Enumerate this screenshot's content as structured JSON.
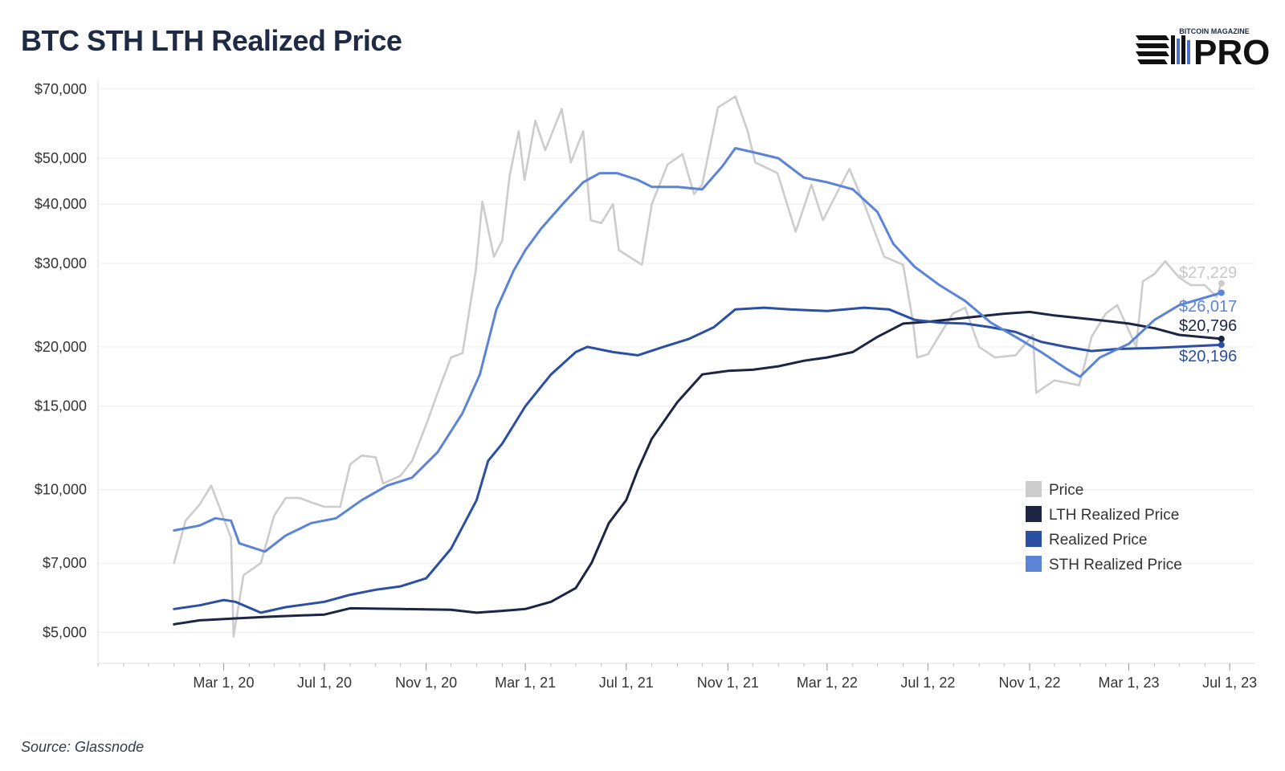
{
  "title": "BTC STH LTH Realized Price",
  "source": "Source: Glassnode",
  "logo": {
    "top_text": "BITCOIN MAGAZINE",
    "main_text": "PRO"
  },
  "chart_data": {
    "type": "line",
    "title": "BTC STH LTH Realized Price",
    "xlabel": "",
    "ylabel": "",
    "y_scale": "log",
    "ylim": [
      4300,
      73000
    ],
    "xlim": [
      "2019-10-01",
      "2023-07-31"
    ],
    "grid": true,
    "legend_position": "bottom-right",
    "y_ticks": [
      {
        "value": 5000,
        "label": "$5,000"
      },
      {
        "value": 7000,
        "label": "$7,000"
      },
      {
        "value": 10000,
        "label": "$10,000"
      },
      {
        "value": 15000,
        "label": "$15,000"
      },
      {
        "value": 20000,
        "label": "$20,000"
      },
      {
        "value": 30000,
        "label": "$30,000"
      },
      {
        "value": 40000,
        "label": "$40,000"
      },
      {
        "value": 50000,
        "label": "$50,000"
      },
      {
        "value": 70000,
        "label": "$70,000"
      }
    ],
    "x_ticks": [
      {
        "value": "2020-03-01",
        "label": "Mar 1, 20"
      },
      {
        "value": "2020-07-01",
        "label": "Jul 1, 20"
      },
      {
        "value": "2020-11-01",
        "label": "Nov 1, 20"
      },
      {
        "value": "2021-03-01",
        "label": "Mar 1, 21"
      },
      {
        "value": "2021-07-01",
        "label": "Jul 1, 21"
      },
      {
        "value": "2021-11-01",
        "label": "Nov 1, 21"
      },
      {
        "value": "2022-03-01",
        "label": "Mar 1, 22"
      },
      {
        "value": "2022-07-01",
        "label": "Jul 1, 22"
      },
      {
        "value": "2022-11-01",
        "label": "Nov 1, 22"
      },
      {
        "value": "2023-03-01",
        "label": "Mar 1, 23"
      },
      {
        "value": "2023-07-01",
        "label": "Jul 1, 23"
      }
    ],
    "series": [
      {
        "name": "Price",
        "color": "#cccccc",
        "end_label": "$27,229",
        "end_label_color": "#c8c8c8",
        "points": [
          [
            "2020-01-01",
            7000
          ],
          [
            "2020-01-15",
            8600
          ],
          [
            "2020-02-01",
            9300
          ],
          [
            "2020-02-15",
            10200
          ],
          [
            "2020-03-01",
            8700
          ],
          [
            "2020-03-10",
            7900
          ],
          [
            "2020-03-13",
            4900
          ],
          [
            "2020-03-25",
            6600
          ],
          [
            "2020-04-15",
            7000
          ],
          [
            "2020-05-01",
            8800
          ],
          [
            "2020-05-15",
            9600
          ],
          [
            "2020-06-01",
            9600
          ],
          [
            "2020-06-15",
            9400
          ],
          [
            "2020-07-01",
            9200
          ],
          [
            "2020-07-20",
            9200
          ],
          [
            "2020-08-01",
            11300
          ],
          [
            "2020-08-15",
            11800
          ],
          [
            "2020-09-01",
            11700
          ],
          [
            "2020-09-10",
            10300
          ],
          [
            "2020-10-01",
            10700
          ],
          [
            "2020-10-15",
            11500
          ],
          [
            "2020-11-01",
            13700
          ],
          [
            "2020-11-15",
            16000
          ],
          [
            "2020-12-01",
            19000
          ],
          [
            "2020-12-15",
            19400
          ],
          [
            "2020-12-31",
            29000
          ],
          [
            "2021-01-08",
            40500
          ],
          [
            "2021-01-22",
            31000
          ],
          [
            "2021-02-01",
            33500
          ],
          [
            "2021-02-10",
            46000
          ],
          [
            "2021-02-21",
            57000
          ],
          [
            "2021-02-28",
            45000
          ],
          [
            "2021-03-13",
            60000
          ],
          [
            "2021-03-25",
            52000
          ],
          [
            "2021-04-14",
            63500
          ],
          [
            "2021-04-25",
            49000
          ],
          [
            "2021-05-10",
            57000
          ],
          [
            "2021-05-19",
            37000
          ],
          [
            "2021-06-01",
            36500
          ],
          [
            "2021-06-15",
            40000
          ],
          [
            "2021-06-22",
            32000
          ],
          [
            "2021-07-20",
            29800
          ],
          [
            "2021-08-01",
            40000
          ],
          [
            "2021-08-20",
            48500
          ],
          [
            "2021-09-07",
            51000
          ],
          [
            "2021-09-21",
            42000
          ],
          [
            "2021-10-01",
            44000
          ],
          [
            "2021-10-20",
            64000
          ],
          [
            "2021-11-10",
            67500
          ],
          [
            "2021-11-25",
            57000
          ],
          [
            "2021-12-04",
            49000
          ],
          [
            "2021-12-31",
            46500
          ],
          [
            "2022-01-22",
            35000
          ],
          [
            "2022-02-10",
            44000
          ],
          [
            "2022-02-24",
            37000
          ],
          [
            "2022-03-28",
            47500
          ],
          [
            "2022-04-15",
            40000
          ],
          [
            "2022-05-09",
            31000
          ],
          [
            "2022-06-01",
            29800
          ],
          [
            "2022-06-13",
            22500
          ],
          [
            "2022-06-18",
            19000
          ],
          [
            "2022-07-01",
            19300
          ],
          [
            "2022-07-31",
            23500
          ],
          [
            "2022-08-15",
            24200
          ],
          [
            "2022-09-01",
            20000
          ],
          [
            "2022-09-20",
            19000
          ],
          [
            "2022-10-15",
            19200
          ],
          [
            "2022-11-05",
            21200
          ],
          [
            "2022-11-09",
            16000
          ],
          [
            "2022-12-01",
            17000
          ],
          [
            "2022-12-31",
            16600
          ],
          [
            "2023-01-15",
            21000
          ],
          [
            "2023-02-01",
            23500
          ],
          [
            "2023-02-15",
            24500
          ],
          [
            "2023-03-10",
            20000
          ],
          [
            "2023-03-18",
            27500
          ],
          [
            "2023-04-01",
            28500
          ],
          [
            "2023-04-14",
            30300
          ],
          [
            "2023-05-01",
            28000
          ],
          [
            "2023-05-15",
            27000
          ],
          [
            "2023-06-01",
            27000
          ],
          [
            "2023-06-15",
            25500
          ],
          [
            "2023-06-21",
            27229
          ]
        ]
      },
      {
        "name": "LTH Realized Price",
        "color": "#1d2545",
        "end_label": "$20,796",
        "end_label_color": "#1d2545",
        "points": [
          [
            "2020-01-01",
            5200
          ],
          [
            "2020-02-01",
            5300
          ],
          [
            "2020-03-15",
            5350
          ],
          [
            "2020-05-01",
            5400
          ],
          [
            "2020-07-01",
            5450
          ],
          [
            "2020-08-01",
            5620
          ],
          [
            "2020-10-01",
            5600
          ],
          [
            "2020-12-01",
            5580
          ],
          [
            "2021-01-01",
            5500
          ],
          [
            "2021-02-01",
            5550
          ],
          [
            "2021-03-01",
            5600
          ],
          [
            "2021-04-01",
            5800
          ],
          [
            "2021-05-01",
            6200
          ],
          [
            "2021-05-20",
            7000
          ],
          [
            "2021-06-10",
            8500
          ],
          [
            "2021-07-01",
            9500
          ],
          [
            "2021-07-15",
            11000
          ],
          [
            "2021-08-01",
            12800
          ],
          [
            "2021-09-01",
            15300
          ],
          [
            "2021-10-01",
            17500
          ],
          [
            "2021-11-01",
            17800
          ],
          [
            "2021-12-01",
            17900
          ],
          [
            "2022-01-01",
            18200
          ],
          [
            "2022-02-01",
            18700
          ],
          [
            "2022-03-01",
            19000
          ],
          [
            "2022-04-01",
            19500
          ],
          [
            "2022-05-01",
            21000
          ],
          [
            "2022-06-01",
            22400
          ],
          [
            "2022-07-01",
            22600
          ],
          [
            "2022-08-01",
            22900
          ],
          [
            "2022-09-01",
            23200
          ],
          [
            "2022-10-01",
            23500
          ],
          [
            "2022-11-01",
            23700
          ],
          [
            "2022-12-01",
            23300
          ],
          [
            "2023-01-01",
            23000
          ],
          [
            "2023-02-01",
            22700
          ],
          [
            "2023-03-01",
            22400
          ],
          [
            "2023-04-01",
            21900
          ],
          [
            "2023-05-01",
            21200
          ],
          [
            "2023-06-21",
            20796
          ]
        ]
      },
      {
        "name": "Realized Price",
        "color": "#2b4fa3",
        "end_label": "$20,196",
        "end_label_color": "#2b4fa3",
        "points": [
          [
            "2020-01-01",
            5600
          ],
          [
            "2020-02-01",
            5700
          ],
          [
            "2020-03-01",
            5850
          ],
          [
            "2020-03-15",
            5800
          ],
          [
            "2020-04-15",
            5500
          ],
          [
            "2020-05-15",
            5650
          ],
          [
            "2020-07-01",
            5800
          ],
          [
            "2020-08-01",
            6000
          ],
          [
            "2020-09-01",
            6150
          ],
          [
            "2020-10-01",
            6250
          ],
          [
            "2020-11-01",
            6500
          ],
          [
            "2020-12-01",
            7500
          ],
          [
            "2021-01-01",
            9500
          ],
          [
            "2021-01-15",
            11500
          ],
          [
            "2021-02-01",
            12500
          ],
          [
            "2021-03-01",
            15000
          ],
          [
            "2021-04-01",
            17500
          ],
          [
            "2021-05-01",
            19500
          ],
          [
            "2021-05-15",
            20000
          ],
          [
            "2021-06-15",
            19500
          ],
          [
            "2021-07-15",
            19200
          ],
          [
            "2021-08-15",
            20000
          ],
          [
            "2021-09-15",
            20800
          ],
          [
            "2021-10-15",
            22000
          ],
          [
            "2021-11-10",
            24000
          ],
          [
            "2021-12-15",
            24200
          ],
          [
            "2022-01-15",
            24000
          ],
          [
            "2022-03-01",
            23800
          ],
          [
            "2022-04-15",
            24200
          ],
          [
            "2022-05-15",
            24000
          ],
          [
            "2022-06-15",
            22800
          ],
          [
            "2022-07-15",
            22500
          ],
          [
            "2022-08-15",
            22400
          ],
          [
            "2022-09-15",
            22000
          ],
          [
            "2022-10-15",
            21500
          ],
          [
            "2022-11-15",
            20500
          ],
          [
            "2022-12-15",
            20000
          ],
          [
            "2023-01-15",
            19600
          ],
          [
            "2023-02-15",
            19800
          ],
          [
            "2023-04-01",
            19900
          ],
          [
            "2023-06-21",
            20196
          ]
        ]
      },
      {
        "name": "STH Realized Price",
        "color": "#5b84d6",
        "end_label": "$26,017",
        "end_label_color": "#5b84d6",
        "points": [
          [
            "2020-01-01",
            8200
          ],
          [
            "2020-02-01",
            8400
          ],
          [
            "2020-02-20",
            8700
          ],
          [
            "2020-03-10",
            8600
          ],
          [
            "2020-03-20",
            7700
          ],
          [
            "2020-04-20",
            7400
          ],
          [
            "2020-05-15",
            8000
          ],
          [
            "2020-06-15",
            8500
          ],
          [
            "2020-07-15",
            8700
          ],
          [
            "2020-08-15",
            9500
          ],
          [
            "2020-09-15",
            10200
          ],
          [
            "2020-10-15",
            10600
          ],
          [
            "2020-11-15",
            12000
          ],
          [
            "2020-12-15",
            14500
          ],
          [
            "2021-01-05",
            17500
          ],
          [
            "2021-01-25",
            24000
          ],
          [
            "2021-02-15",
            29000
          ],
          [
            "2021-03-01",
            32000
          ],
          [
            "2021-03-20",
            35500
          ],
          [
            "2021-04-15",
            40000
          ],
          [
            "2021-05-10",
            44500
          ],
          [
            "2021-05-30",
            46500
          ],
          [
            "2021-06-20",
            46500
          ],
          [
            "2021-07-15",
            45000
          ],
          [
            "2021-08-01",
            43500
          ],
          [
            "2021-09-01",
            43500
          ],
          [
            "2021-10-01",
            43000
          ],
          [
            "2021-10-25",
            48000
          ],
          [
            "2021-11-10",
            52500
          ],
          [
            "2021-12-01",
            51500
          ],
          [
            "2022-01-01",
            50000
          ],
          [
            "2022-02-01",
            45500
          ],
          [
            "2022-03-01",
            44500
          ],
          [
            "2022-04-01",
            43000
          ],
          [
            "2022-05-01",
            38500
          ],
          [
            "2022-05-20",
            33000
          ],
          [
            "2022-06-15",
            29500
          ],
          [
            "2022-07-15",
            27000
          ],
          [
            "2022-08-15",
            25000
          ],
          [
            "2022-09-15",
            22500
          ],
          [
            "2022-10-15",
            21000
          ],
          [
            "2022-11-15",
            19500
          ],
          [
            "2022-12-15",
            18000
          ],
          [
            "2023-01-01",
            17300
          ],
          [
            "2023-01-25",
            19000
          ],
          [
            "2023-03-01",
            20300
          ],
          [
            "2023-04-01",
            22800
          ],
          [
            "2023-05-01",
            24500
          ],
          [
            "2023-06-21",
            26017
          ]
        ]
      }
    ]
  }
}
